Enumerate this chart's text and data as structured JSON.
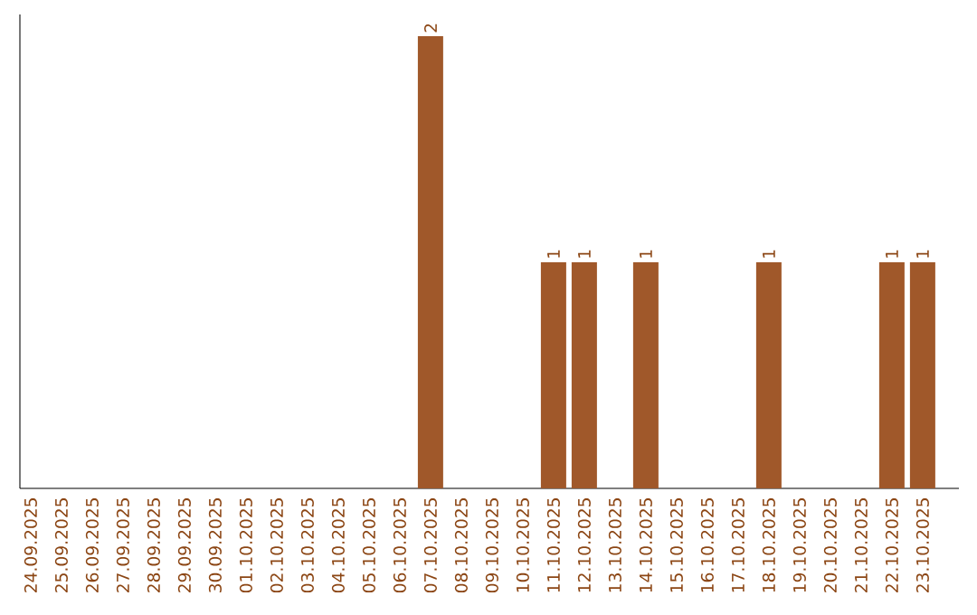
{
  "chart_data": {
    "type": "bar",
    "categories": [
      "24.09.2025",
      "25.09.2025",
      "26.09.2025",
      "27.09.2025",
      "28.09.2025",
      "29.09.2025",
      "30.09.2025",
      "01.10.2025",
      "02.10.2025",
      "03.10.2025",
      "04.10.2025",
      "05.10.2025",
      "06.10.2025",
      "07.10.2025",
      "08.10.2025",
      "09.10.2025",
      "10.10.2025",
      "11.10.2025",
      "12.10.2025",
      "13.10.2025",
      "14.10.2025",
      "15.10.2025",
      "16.10.2025",
      "17.10.2025",
      "18.10.2025",
      "19.10.2025",
      "20.10.2025",
      "21.10.2025",
      "22.10.2025",
      "23.10.2025"
    ],
    "values": [
      null,
      null,
      null,
      null,
      null,
      null,
      null,
      null,
      null,
      null,
      null,
      null,
      null,
      2,
      null,
      null,
      null,
      1,
      1,
      null,
      1,
      null,
      null,
      null,
      1,
      null,
      null,
      null,
      1,
      1
    ],
    "data_labels": true,
    "color": "#a0582a"
  }
}
